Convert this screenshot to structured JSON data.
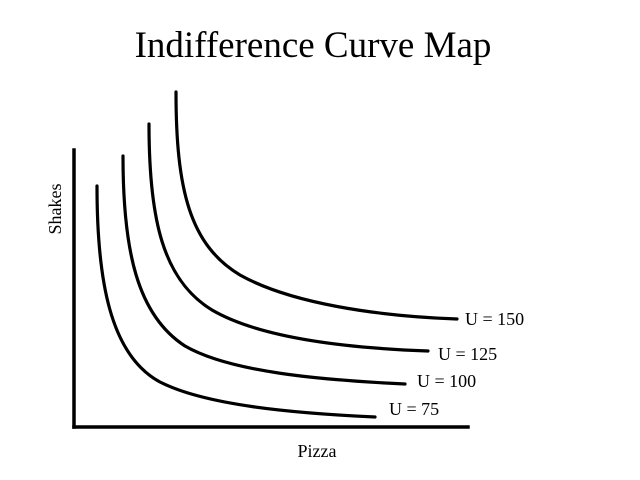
{
  "title": "Indifference Curve Map",
  "axes": {
    "x_label": "Pizza",
    "y_label": "Shakes"
  },
  "curves": [
    {
      "label": "U = 75"
    },
    {
      "label": "U = 100"
    },
    {
      "label": "U = 125"
    },
    {
      "label": "U = 150"
    }
  ],
  "colors": {
    "background": "#ffffff",
    "ink": "#000000"
  }
}
